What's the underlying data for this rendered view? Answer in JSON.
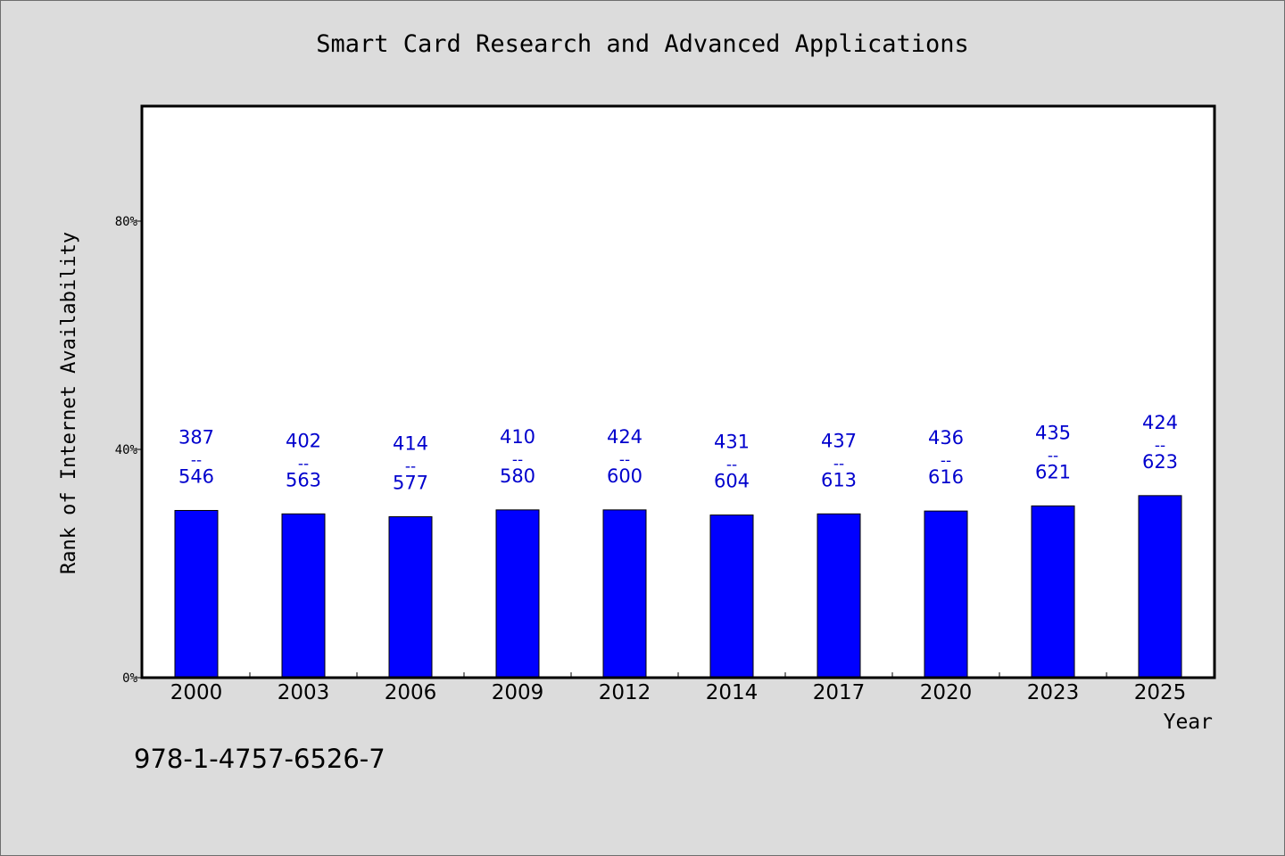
{
  "chart_data": {
    "type": "bar",
    "title": "Smart Card Research and Advanced Applications",
    "xlabel": "Year",
    "ylabel": "Rank of Internet Availability",
    "categories": [
      "2000",
      "2003",
      "2006",
      "2009",
      "2012",
      "2014",
      "2017",
      "2020",
      "2023",
      "2025"
    ],
    "values": [
      0.293,
      0.287,
      0.282,
      0.294,
      0.294,
      0.285,
      0.287,
      0.292,
      0.301,
      0.319
    ],
    "data_labels": [
      {
        "top": "387",
        "bottom": "546"
      },
      {
        "top": "402",
        "bottom": "563"
      },
      {
        "top": "414",
        "bottom": "577"
      },
      {
        "top": "410",
        "bottom": "580"
      },
      {
        "top": "424",
        "bottom": "600"
      },
      {
        "top": "431",
        "bottom": "604"
      },
      {
        "top": "437",
        "bottom": "613"
      },
      {
        "top": "436",
        "bottom": "616"
      },
      {
        "top": "435",
        "bottom": "621"
      },
      {
        "top": "424",
        "bottom": "623"
      }
    ],
    "label_separator": "--",
    "yticks": [
      0,
      0.4,
      0.8
    ],
    "ytick_labels": [
      "0%",
      "40%",
      "80%"
    ],
    "ylim": [
      0,
      1
    ],
    "grid": false,
    "bar_color": "#0000ff",
    "label_color": "#0000cd"
  },
  "footnote": "978-1-4757-6526-7"
}
